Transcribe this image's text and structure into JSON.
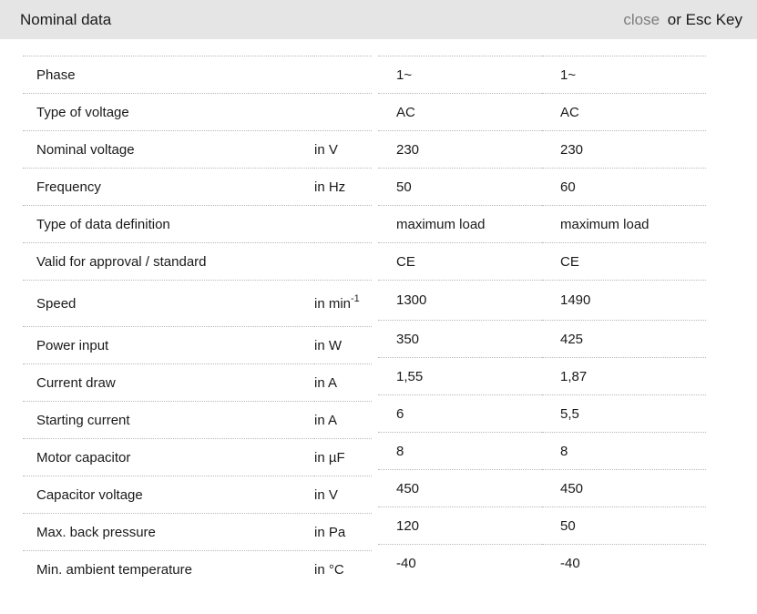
{
  "header": {
    "title": "Nominal data",
    "close_label": "close",
    "close_suffix": "or Esc Key"
  },
  "table": {
    "rows": [
      {
        "label": "Phase",
        "unit": "",
        "unit_sup": "",
        "values": [
          "1~",
          "1~"
        ]
      },
      {
        "label": "Type of voltage",
        "unit": "",
        "unit_sup": "",
        "values": [
          "AC",
          "AC"
        ]
      },
      {
        "label": "Nominal voltage",
        "unit": "in V",
        "unit_sup": "",
        "values": [
          "230",
          "230"
        ]
      },
      {
        "label": "Frequency",
        "unit": "in Hz",
        "unit_sup": "",
        "values": [
          "50",
          "60"
        ]
      },
      {
        "label": "Type of data definition",
        "unit": "",
        "unit_sup": "",
        "values": [
          "maximum load",
          "maximum load"
        ]
      },
      {
        "label": "Valid for approval / standard",
        "unit": "",
        "unit_sup": "",
        "values": [
          "CE",
          "CE"
        ]
      },
      {
        "label": "Speed",
        "unit": "in min",
        "unit_sup": "-1",
        "values": [
          "1300",
          "1490"
        ]
      },
      {
        "label": "Power input",
        "unit": "in W",
        "unit_sup": "",
        "values": [
          "350",
          "425"
        ]
      },
      {
        "label": "Current draw",
        "unit": "in A",
        "unit_sup": "",
        "values": [
          "1,55",
          "1,87"
        ]
      },
      {
        "label": "Starting current",
        "unit": "in A",
        "unit_sup": "",
        "values": [
          "6",
          "5,5"
        ]
      },
      {
        "label": "Motor capacitor",
        "unit": "in µF",
        "unit_sup": "",
        "values": [
          "8",
          "8"
        ]
      },
      {
        "label": "Capacitor voltage",
        "unit": "in V",
        "unit_sup": "",
        "values": [
          "450",
          "450"
        ]
      },
      {
        "label": "Max. back pressure",
        "unit": "in Pa",
        "unit_sup": "",
        "values": [
          "120",
          "50"
        ]
      },
      {
        "label": "Min. ambient temperature",
        "unit": "in °C",
        "unit_sup": "",
        "values": [
          "-40",
          "-40"
        ]
      }
    ]
  },
  "colors": {
    "header_bg": "#e5e5e5",
    "text": "#1a1a1a",
    "close_link": "#7d7d7d",
    "separator": "#b8b8b8"
  }
}
